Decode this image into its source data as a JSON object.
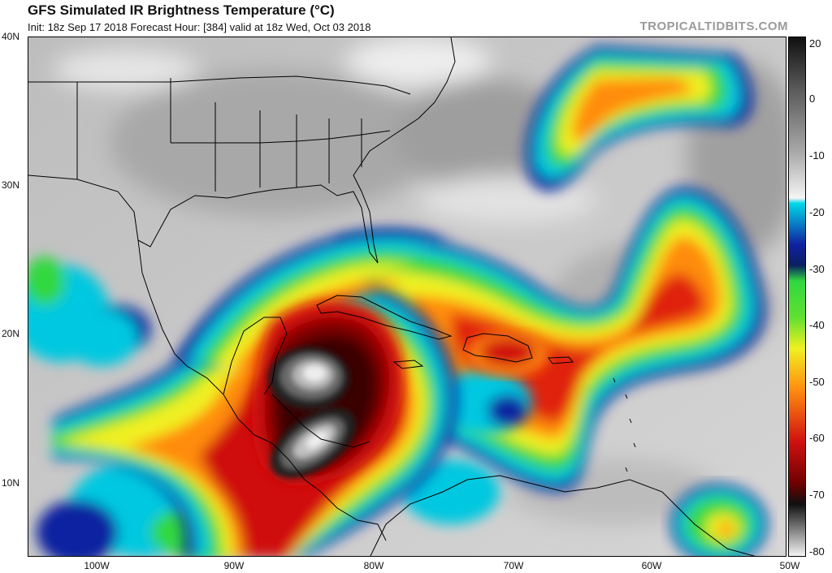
{
  "header": {
    "title": "GFS Simulated IR Brightness Temperature (°C)",
    "subtitle": "Init: 18z Sep 17 2018   Forecast Hour: [384]   valid at 18z Wed, Oct 03 2018",
    "brand": "TROPICALTIDBITS.COM"
  },
  "axes": {
    "latitude_labels": [
      "40N",
      "30N",
      "20N",
      "10N"
    ],
    "longitude_labels": [
      "100W",
      "90W",
      "80W",
      "70W",
      "60W",
      "50W"
    ]
  },
  "colorbar": {
    "labels": [
      "20",
      "0",
      "-10",
      "-20",
      "-30",
      "-40",
      "-50",
      "-60",
      "-70",
      "-80"
    ],
    "colors": {
      "warm_gray": "#b8b8b8",
      "cyan": "#00d8e8",
      "blue": "#1020a0",
      "green": "#30d840",
      "yellow": "#f0f020",
      "orange": "#ff8c10",
      "red": "#d01010",
      "dark_red": "#700000",
      "black": "#101010",
      "white": "#f4f4f4"
    }
  },
  "map_colors": {
    "background": "#cfcfcf",
    "coast": "#000000"
  }
}
